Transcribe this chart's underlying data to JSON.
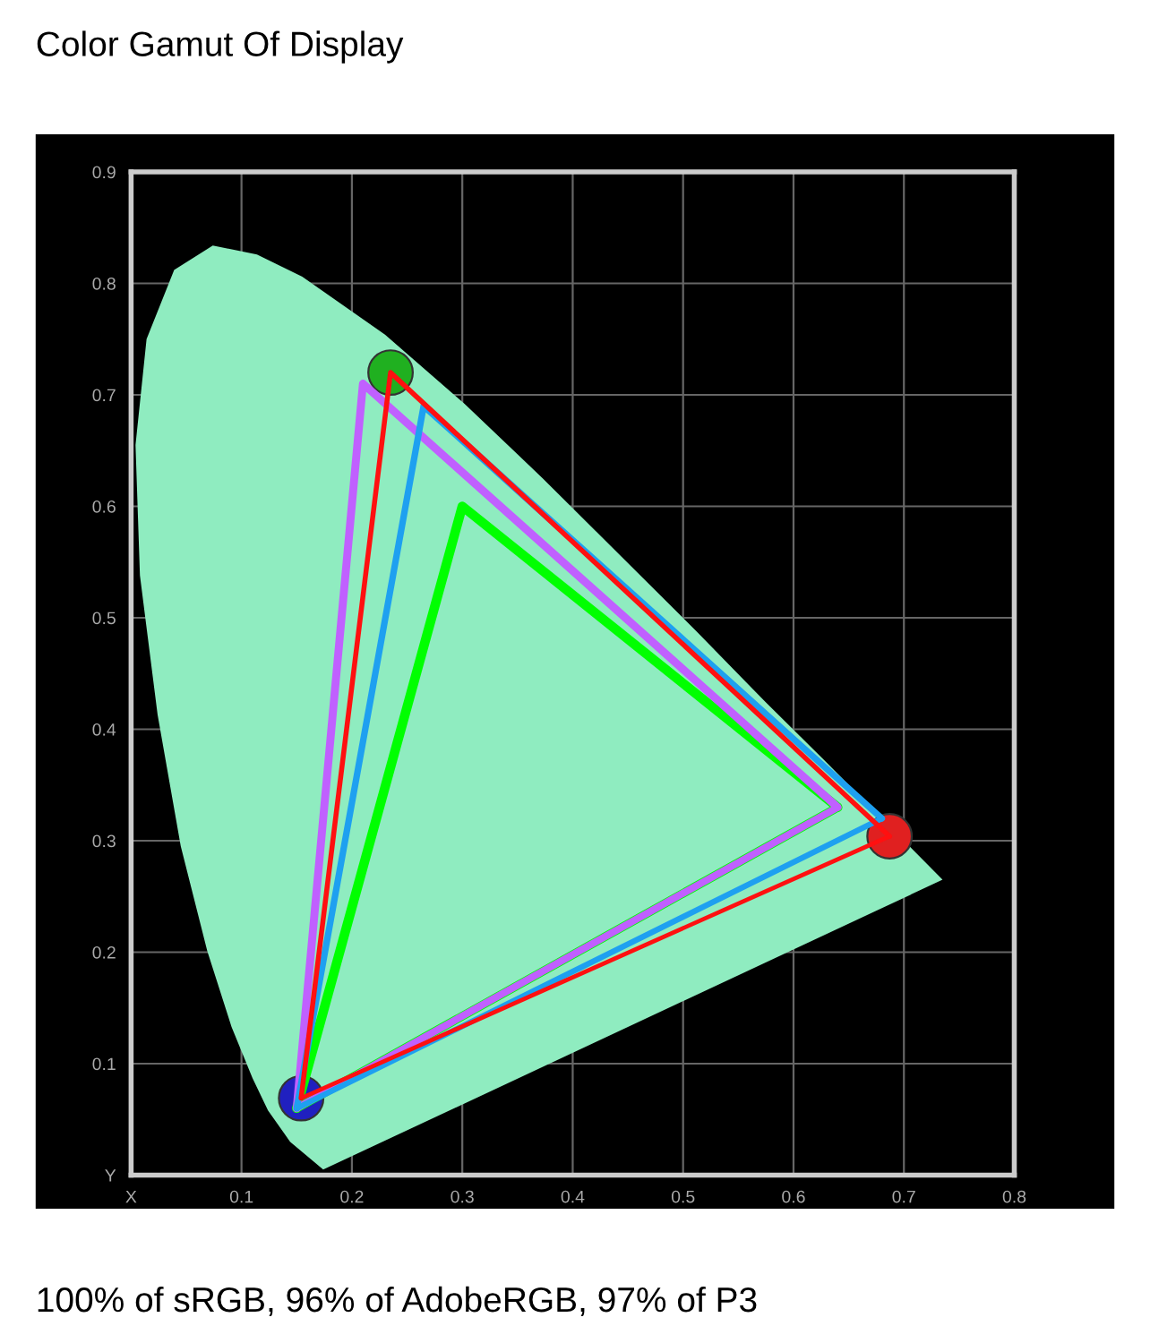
{
  "chart_data": {
    "type": "line",
    "title": "Color Gamut Of Display",
    "annotations": [
      "100% of sRGB, 96% of AdobeRGB, 97% of P3"
    ],
    "xlim": [
      0,
      0.8
    ],
    "ylim": [
      0,
      0.9
    ],
    "xticks": [
      {
        "value": 0,
        "label": "X"
      },
      0.1,
      0.2,
      0.3,
      0.4,
      0.5,
      0.6,
      0.7,
      0.8
    ],
    "yticks": [
      {
        "value": 0,
        "label": "Y"
      },
      0.1,
      0.2,
      0.3,
      0.4,
      0.5,
      0.6,
      0.7,
      0.8,
      0.9
    ],
    "grid": true,
    "line_style": "solid",
    "series": [
      {
        "type": "area",
        "color": "#8fecc0",
        "x": [
          0.174,
          0.144,
          0.124,
          0.11,
          0.091,
          0.069,
          0.045,
          0.024,
          0.008,
          0.004,
          0.014,
          0.039,
          0.074,
          0.114,
          0.155,
          0.23,
          0.302,
          0.373,
          0.444,
          0.513,
          0.575,
          0.627,
          0.735
        ],
        "values": [
          0.005,
          0.03,
          0.058,
          0.087,
          0.133,
          0.201,
          0.295,
          0.413,
          0.538,
          0.655,
          0.75,
          0.812,
          0.834,
          0.826,
          0.806,
          0.754,
          0.692,
          0.625,
          0.555,
          0.487,
          0.424,
          0.373,
          0.265
        ]
      },
      {
        "color": "#00ff00",
        "x": [
          0.15,
          0.3,
          0.64
        ],
        "values": [
          0.06,
          0.6,
          0.33
        ]
      },
      {
        "color": "#00ff00",
        "x": [
          0.15,
          0.64
        ],
        "values": [
          0.06,
          0.33
        ]
      },
      {
        "color": "#c060ff",
        "x": [
          0.15,
          0.21,
          0.64
        ],
        "values": [
          0.06,
          0.71,
          0.33
        ]
      },
      {
        "color": "#c060ff",
        "x": [
          0.15,
          0.64
        ],
        "values": [
          0.06,
          0.33
        ]
      },
      {
        "color": "#1ea0f0",
        "x": [
          0.15,
          0.265,
          0.68
        ],
        "values": [
          0.06,
          0.69,
          0.32
        ]
      },
      {
        "color": "#1ea0f0",
        "x": [
          0.15,
          0.68
        ],
        "values": [
          0.06,
          0.32
        ]
      },
      {
        "color": "#ff1010",
        "x": [
          0.154,
          0.235,
          0.687
        ],
        "values": [
          0.069,
          0.72,
          0.304
        ]
      },
      {
        "color": "#ff1010",
        "x": [
          0.154,
          0.687
        ],
        "values": [
          0.069,
          0.304
        ]
      },
      {
        "type": "scatter",
        "marker": "circle",
        "colors": [
          "#e02020",
          "#20b020",
          "#2020c0"
        ],
        "x": [
          0.687,
          0.235,
          0.154
        ],
        "values": [
          0.304,
          0.72,
          0.069
        ]
      }
    ]
  }
}
